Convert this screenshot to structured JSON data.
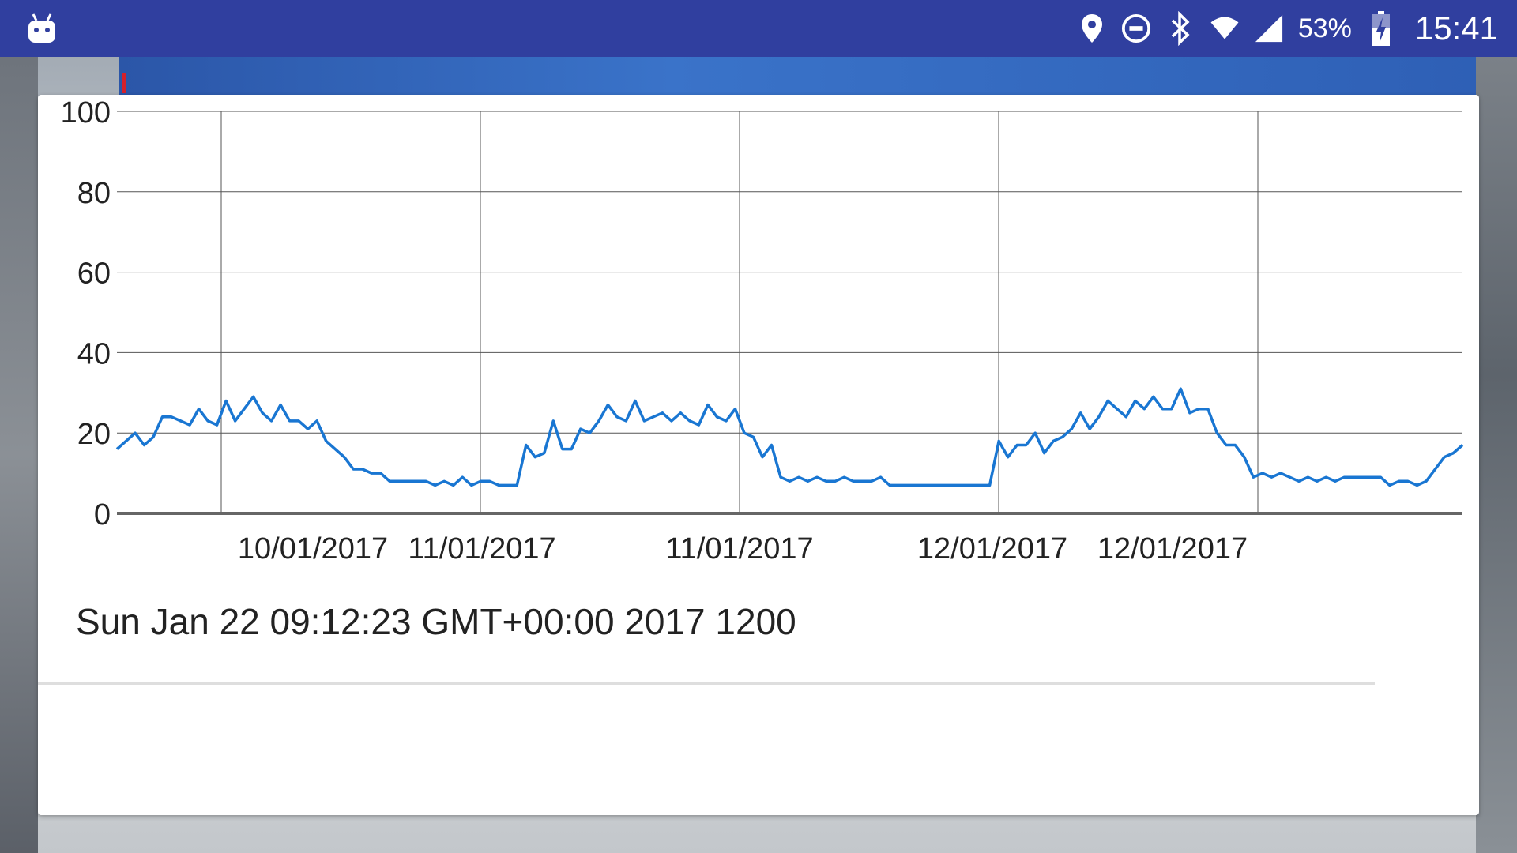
{
  "status_bar": {
    "battery_percent": "53%",
    "time": "15:41",
    "icons": [
      "android-icon",
      "location-icon",
      "do-not-disturb-icon",
      "bluetooth-icon",
      "wifi-icon",
      "cell-signal-icon",
      "battery-charging-icon"
    ]
  },
  "caption": "Sun Jan 22 09:12:23 GMT+00:00 2017 1200",
  "colors": {
    "status_bar": "#303f9f",
    "line": "#1976d2"
  },
  "chart_data": {
    "type": "line",
    "title": "",
    "xlabel": "",
    "ylabel": "",
    "ylim": [
      0,
      100
    ],
    "yticks": [
      "0",
      "20",
      "40",
      "60",
      "80",
      "100"
    ],
    "xtick_labels": [
      "10/01/2017",
      "11/01/2017",
      "11/01/2017",
      "12/01/2017",
      "12/01/2017"
    ],
    "grid": true,
    "series": [
      {
        "values": [
          16,
          18,
          20,
          17,
          19,
          24,
          24,
          23,
          22,
          26,
          23,
          22,
          28,
          23,
          26,
          29,
          25,
          23,
          27,
          23,
          23,
          21,
          23,
          18,
          16,
          14,
          11,
          11,
          10,
          10,
          8,
          8,
          8,
          8,
          8,
          7,
          8,
          7,
          9,
          7,
          8,
          8,
          7,
          7,
          7,
          17,
          14,
          15,
          23,
          16,
          16,
          21,
          20,
          23,
          27,
          24,
          23,
          28,
          23,
          24,
          25,
          23,
          25,
          23,
          22,
          27,
          24,
          23,
          26,
          20,
          19,
          14,
          17,
          9,
          8,
          9,
          8,
          9,
          8,
          8,
          9,
          8,
          8,
          8,
          9,
          7,
          7,
          7,
          7,
          7,
          7,
          7,
          7,
          7,
          7,
          7,
          7,
          18,
          14,
          17,
          17,
          20,
          15,
          18,
          19,
          21,
          25,
          21,
          24,
          28,
          26,
          24,
          28,
          26,
          29,
          26,
          26,
          31,
          25,
          26,
          26,
          20,
          17,
          17,
          14,
          9,
          10,
          9,
          10,
          9,
          8,
          9,
          8,
          9,
          8,
          9,
          9,
          9,
          9,
          9,
          7,
          8,
          8,
          7,
          8,
          11,
          14,
          15,
          17
        ]
      }
    ]
  }
}
